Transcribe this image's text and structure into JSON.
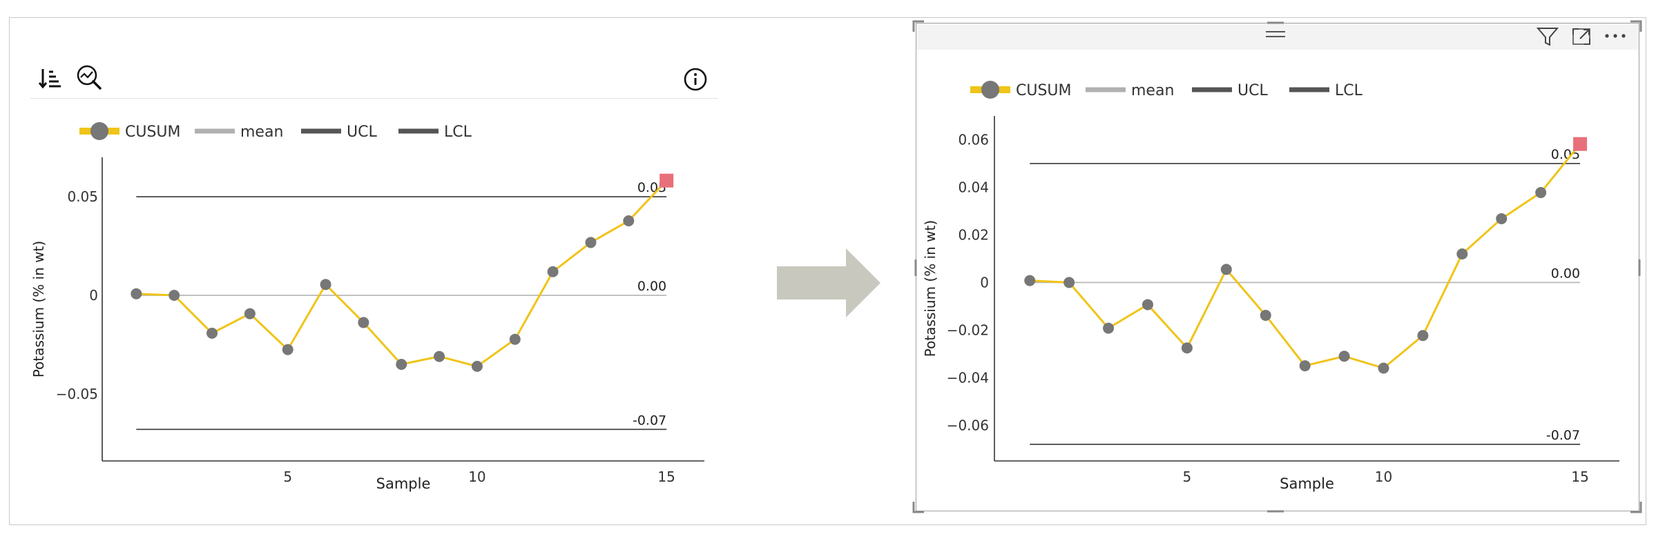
{
  "legend": {
    "items": [
      {
        "label": "CUSUM",
        "color": "#f0c419",
        "marker": "#777777"
      },
      {
        "label": "mean",
        "color": "#b0b0b0"
      },
      {
        "label": "UCL",
        "color": "#555555"
      },
      {
        "label": "LCL",
        "color": "#555555"
      }
    ]
  },
  "toolbar": {
    "sort_icon": "sort-descending-icon",
    "analytics_icon": "magnify-chart-icon",
    "info_icon": "info-icon"
  },
  "visual_header": {
    "icons": [
      "drag-handle-icon",
      "filter-icon",
      "focus-mode-icon",
      "more-options-icon"
    ]
  },
  "chart_data": [
    {
      "type": "line",
      "xlabel": "Sample",
      "ylabel": "Potassium (% in wt)",
      "x": [
        1,
        2,
        3,
        4,
        5,
        6,
        7,
        8,
        9,
        10,
        11,
        12,
        13,
        14,
        15
      ],
      "series": [
        {
          "name": "CUSUM",
          "values": [
            0.0008,
            0.0,
            -0.0192,
            -0.0093,
            -0.0275,
            0.0055,
            -0.0138,
            -0.035,
            -0.031,
            -0.036,
            -0.0223,
            0.012,
            0.0268,
            0.0378,
            0.0582
          ]
        },
        {
          "name": "mean",
          "values": [
            0,
            0,
            0,
            0,
            0,
            0,
            0,
            0,
            0,
            0,
            0,
            0,
            0,
            0,
            0
          ]
        },
        {
          "name": "UCL",
          "values": [
            0.05,
            0.05,
            0.05,
            0.05,
            0.05,
            0.05,
            0.05,
            0.05,
            0.05,
            0.05,
            0.05,
            0.05,
            0.05,
            0.05,
            0.05
          ]
        },
        {
          "name": "LCL",
          "values": [
            -0.068,
            -0.068,
            -0.068,
            -0.068,
            -0.068,
            -0.068,
            -0.068,
            -0.068,
            -0.068,
            -0.068,
            -0.068,
            -0.068,
            -0.068,
            -0.068,
            -0.068
          ]
        }
      ],
      "highlight_point": {
        "x": 15,
        "y": 0.0582,
        "color": "#e8707a"
      },
      "line_labels": {
        "ucl": "0.05",
        "mean": "0.00",
        "lcl": "-0.07"
      },
      "xticks": [
        5,
        10,
        15
      ],
      "xtick_labels": [
        "5",
        "10",
        "15"
      ],
      "yticks": [
        0.05,
        0,
        -0.05
      ],
      "ytick_labels": [
        "0.05",
        "0",
        "−0.05"
      ],
      "xlim": [
        0.1,
        16
      ],
      "ylim": [
        -0.084,
        0.07
      ],
      "legend_position": "top-left"
    },
    {
      "type": "line",
      "xlabel": "Sample",
      "ylabel": "Potassium (% in wt)",
      "x": [
        1,
        2,
        3,
        4,
        5,
        6,
        7,
        8,
        9,
        10,
        11,
        12,
        13,
        14,
        15
      ],
      "series": [
        {
          "name": "CUSUM",
          "values": [
            0.0008,
            0.0,
            -0.0192,
            -0.0093,
            -0.0275,
            0.0055,
            -0.0138,
            -0.035,
            -0.031,
            -0.036,
            -0.0223,
            0.012,
            0.0268,
            0.0378,
            0.0582
          ]
        },
        {
          "name": "mean",
          "values": [
            0,
            0,
            0,
            0,
            0,
            0,
            0,
            0,
            0,
            0,
            0,
            0,
            0,
            0,
            0
          ]
        },
        {
          "name": "UCL",
          "values": [
            0.05,
            0.05,
            0.05,
            0.05,
            0.05,
            0.05,
            0.05,
            0.05,
            0.05,
            0.05,
            0.05,
            0.05,
            0.05,
            0.05,
            0.05
          ]
        },
        {
          "name": "LCL",
          "values": [
            -0.068,
            -0.068,
            -0.068,
            -0.068,
            -0.068,
            -0.068,
            -0.068,
            -0.068,
            -0.068,
            -0.068,
            -0.068,
            -0.068,
            -0.068,
            -0.068,
            -0.068
          ]
        }
      ],
      "highlight_point": {
        "x": 15,
        "y": 0.0582,
        "color": "#e8707a"
      },
      "line_labels": {
        "ucl": "0.05",
        "mean": "0.00",
        "lcl": "-0.07"
      },
      "xticks": [
        5,
        10,
        15
      ],
      "xtick_labels": [
        "5",
        "10",
        "15"
      ],
      "yticks": [
        0.06,
        0.04,
        0.02,
        0,
        -0.02,
        -0.04,
        -0.06
      ],
      "ytick_labels": [
        "0.06",
        "0.04",
        "0.02",
        "0",
        "−0.02",
        "−0.04",
        "−0.06"
      ],
      "xlim": [
        0.1,
        16
      ],
      "ylim": [
        -0.075,
        0.07
      ],
      "legend_position": "top-left"
    }
  ],
  "colors": {
    "cusum_line": "#f0c419",
    "marker": "#777777",
    "highlight": "#e8707a",
    "mean_line": "#b8b8b8",
    "limit_line": "#444444",
    "arrow": "#c8c8bf"
  }
}
